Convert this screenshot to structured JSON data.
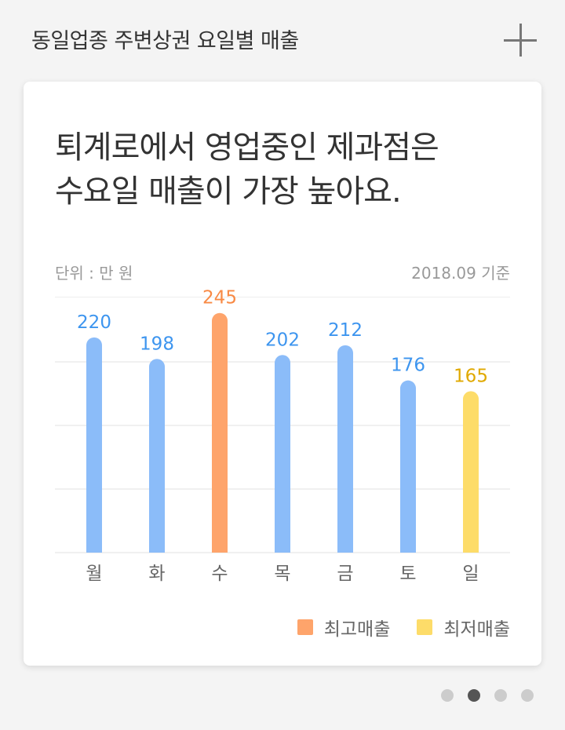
{
  "header": {
    "title": "동일업종 주변상권  요일별 매출"
  },
  "card": {
    "headline": [
      "퇴계로에서 영업중인 제과점은",
      "수요일 매출이 가장 높아요."
    ],
    "unit_label": "단위 : 만 원",
    "basis_label": "2018.09 기준"
  },
  "chart_data": {
    "type": "bar",
    "categories": [
      "월",
      "화",
      "수",
      "목",
      "금",
      "토",
      "일"
    ],
    "values": [
      220,
      198,
      245,
      202,
      212,
      176,
      165
    ],
    "ylim": [
      0,
      260
    ],
    "grid": true,
    "highlight": {
      "max_index": 2,
      "min_index": 6
    },
    "colors": {
      "default_bar": "#8bbcf9",
      "default_label": "#3d95ef",
      "max_bar": "#fea46b",
      "max_label": "#f88a45",
      "min_bar": "#fddc69",
      "min_label": "#e0a900",
      "category_label": "#666666",
      "grid": "#f0f0f0"
    },
    "legend": [
      {
        "label": "최고매출",
        "color": "#fea46b"
      },
      {
        "label": "최저매출",
        "color": "#fddc69"
      }
    ],
    "legend_position": "bottom-right"
  },
  "pagination": {
    "count": 4,
    "active_index": 1
  }
}
